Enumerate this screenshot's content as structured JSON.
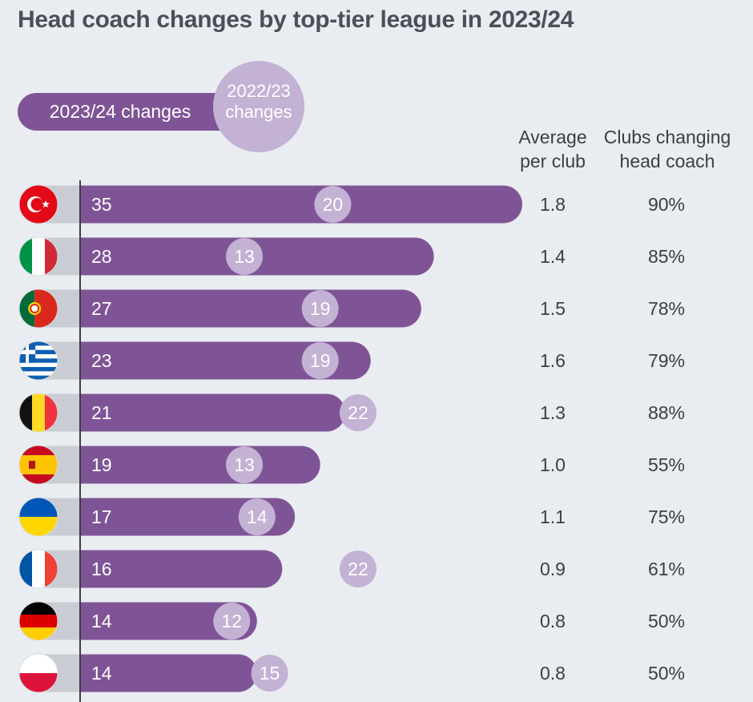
{
  "title": "Head coach changes by top-tier league in 2023/24",
  "legend": {
    "bar_label": "2023/24 changes",
    "circle_label_line1": "2022/23",
    "circle_label_line2": "changes"
  },
  "columns": {
    "average_line1": "Average",
    "average_line2": "per club",
    "clubs_line1": "Clubs changing",
    "clubs_line2": "head coach"
  },
  "colors": {
    "bar": "#7f5496",
    "circle": "#c3b2d4",
    "bar_stub": "#c9cdd3",
    "axis": "#3a3f45",
    "background": "#e9edf1"
  },
  "chart_data": {
    "type": "bar",
    "title": "Head coach changes by top-tier league in 2023/24",
    "orientation": "horizontal",
    "categories": [
      "turkey-flag-icon",
      "italy-flag-icon",
      "portugal-flag-icon",
      "greece-flag-icon",
      "belgium-flag-icon",
      "spain-flag-icon",
      "ukraine-flag-icon",
      "france-flag-icon",
      "germany-flag-icon",
      "poland-flag-icon"
    ],
    "series": [
      {
        "name": "2023/24 changes",
        "values": [
          35,
          28,
          27,
          23,
          21,
          19,
          17,
          16,
          14,
          14
        ]
      },
      {
        "name": "2022/23 changes",
        "values": [
          20,
          13,
          19,
          19,
          22,
          13,
          14,
          22,
          12,
          15
        ]
      }
    ],
    "average_per_club": [
      "1.8",
      "1.4",
      "1.5",
      "1.6",
      "1.3",
      "1.0",
      "1.1",
      "0.9",
      "0.8",
      "0.8"
    ],
    "clubs_changing_head_coach": [
      "90%",
      "85%",
      "78%",
      "79%",
      "88%",
      "55%",
      "75%",
      "61%",
      "50%",
      "50%"
    ],
    "xlim": [
      0,
      35
    ],
    "grid": false
  }
}
